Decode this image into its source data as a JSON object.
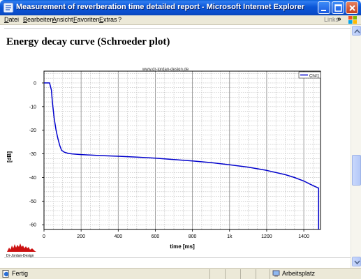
{
  "window": {
    "title": "Measurement of reverberation time detailed report - Microsoft Internet Explorer"
  },
  "menu": {
    "items": [
      "Datei",
      "Bearbeiten",
      "Ansicht",
      "Favoriten",
      "Extras",
      "?"
    ],
    "links_label": "Links",
    "links_chevron": "»"
  },
  "page": {
    "heading": "Energy decay curve (Schroeder plot)",
    "watermark": "www.dr-jordan-design.de",
    "logo_text": "Dr-Jordan-Design"
  },
  "status": {
    "text": "Fertig",
    "zone": "Arbeitsplatz"
  },
  "chart_data": {
    "type": "line",
    "xlabel": "time [ms]",
    "ylabel": "[dB]",
    "xlim": [
      0,
      1490
    ],
    "ylim": [
      -62,
      5
    ],
    "xticks": [
      0,
      200,
      400,
      600,
      800,
      1000,
      1200,
      1400
    ],
    "xtick_labels": [
      "0",
      "200",
      "400",
      "600",
      "800",
      "1k",
      "1200",
      "1400"
    ],
    "yticks": [
      0,
      -10,
      -20,
      -30,
      -40,
      -50,
      -60
    ],
    "ytick_labels": [
      "0",
      "-10",
      "-20",
      "-30",
      "-40",
      "-50",
      "-60"
    ],
    "grid": true,
    "legend": "top-right",
    "series": [
      {
        "name": "Ch#1",
        "color": "#0000cc",
        "x": [
          0,
          30,
          40,
          45,
          55,
          65,
          75,
          85,
          95,
          110,
          130,
          150,
          200,
          300,
          400,
          500,
          600,
          700,
          800,
          900,
          1000,
          1100,
          1200,
          1300,
          1350,
          1400,
          1430,
          1460,
          1480
        ],
        "y": [
          0,
          0,
          -3,
          -8,
          -15,
          -20,
          -23.5,
          -26.5,
          -28.5,
          -29.3,
          -29.8,
          -30,
          -30.3,
          -30.7,
          -31,
          -31.4,
          -31.8,
          -32.4,
          -33,
          -33.7,
          -34.6,
          -35.6,
          -37,
          -38.8,
          -40,
          -41.5,
          -42.7,
          -43.8,
          -44.5
        ]
      }
    ]
  }
}
